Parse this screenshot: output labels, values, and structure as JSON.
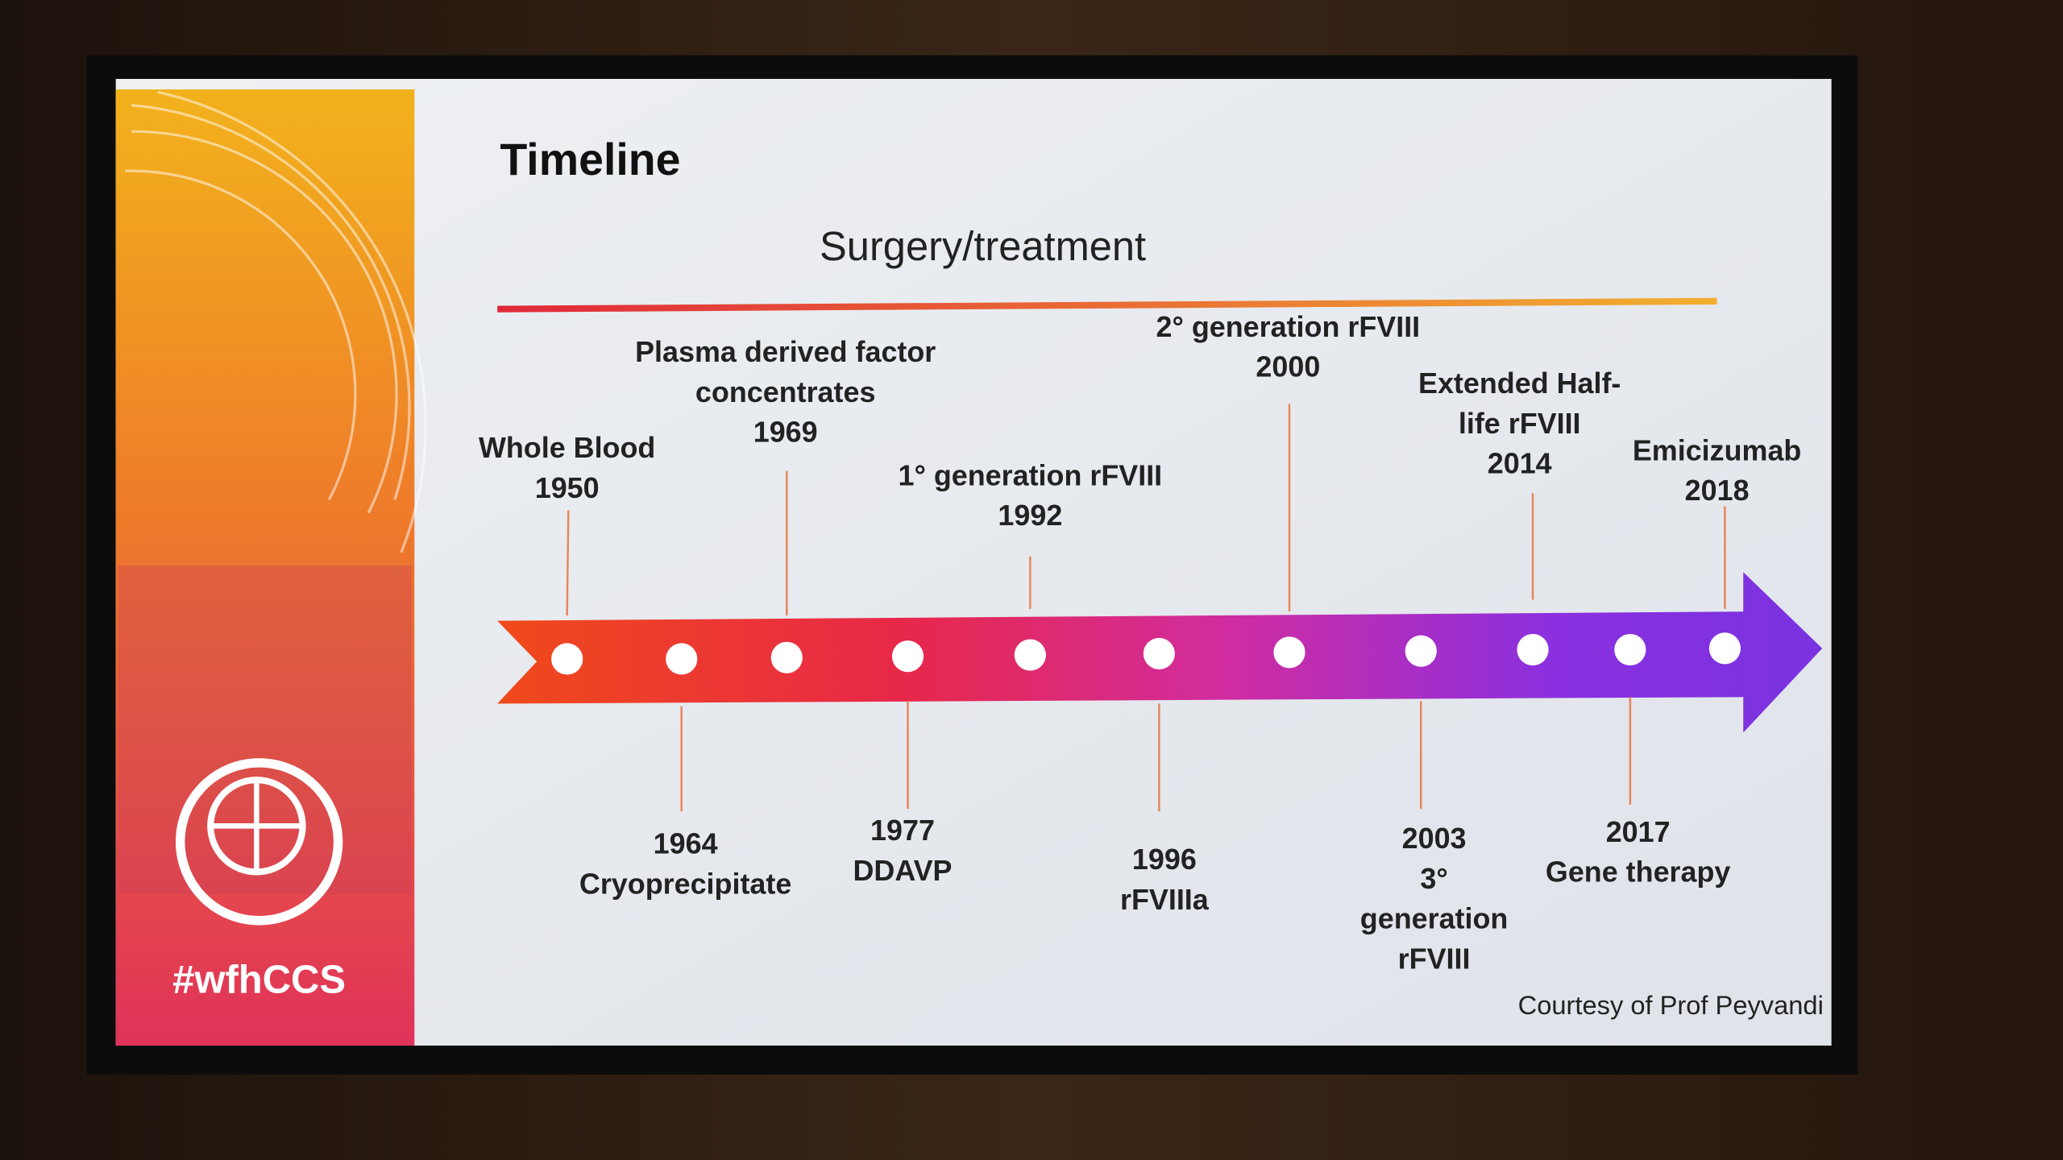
{
  "slide": {
    "title": "Timeline",
    "subtitle": "Surgery/treatment",
    "hashtag": "#wfhCCS",
    "courtesy": "Courtesy of Prof Peyvandi",
    "events": [
      {
        "lines": [
          "Whole Blood",
          "1950"
        ]
      },
      {
        "lines": [
          "1964",
          "Cryoprecipitate"
        ]
      },
      {
        "lines": [
          "Plasma derived factor",
          "concentrates",
          "1969"
        ]
      },
      {
        "lines": [
          "1977",
          "DDAVP"
        ]
      },
      {
        "lines": [
          "1° generation rFVIII",
          "1992"
        ]
      },
      {
        "lines": [
          "1996",
          "rFVIIIa"
        ]
      },
      {
        "lines": [
          "2° generation rFVIII",
          "2000"
        ]
      },
      {
        "lines": [
          "2003",
          "3°",
          "generation",
          "rFVIII"
        ]
      },
      {
        "lines": [
          "Extended Half-",
          "life rFVIII",
          "2014"
        ]
      },
      {
        "lines": [
          "2017",
          "Gene therapy"
        ]
      },
      {
        "lines": [
          "Emicizumab",
          "2018"
        ]
      }
    ]
  }
}
